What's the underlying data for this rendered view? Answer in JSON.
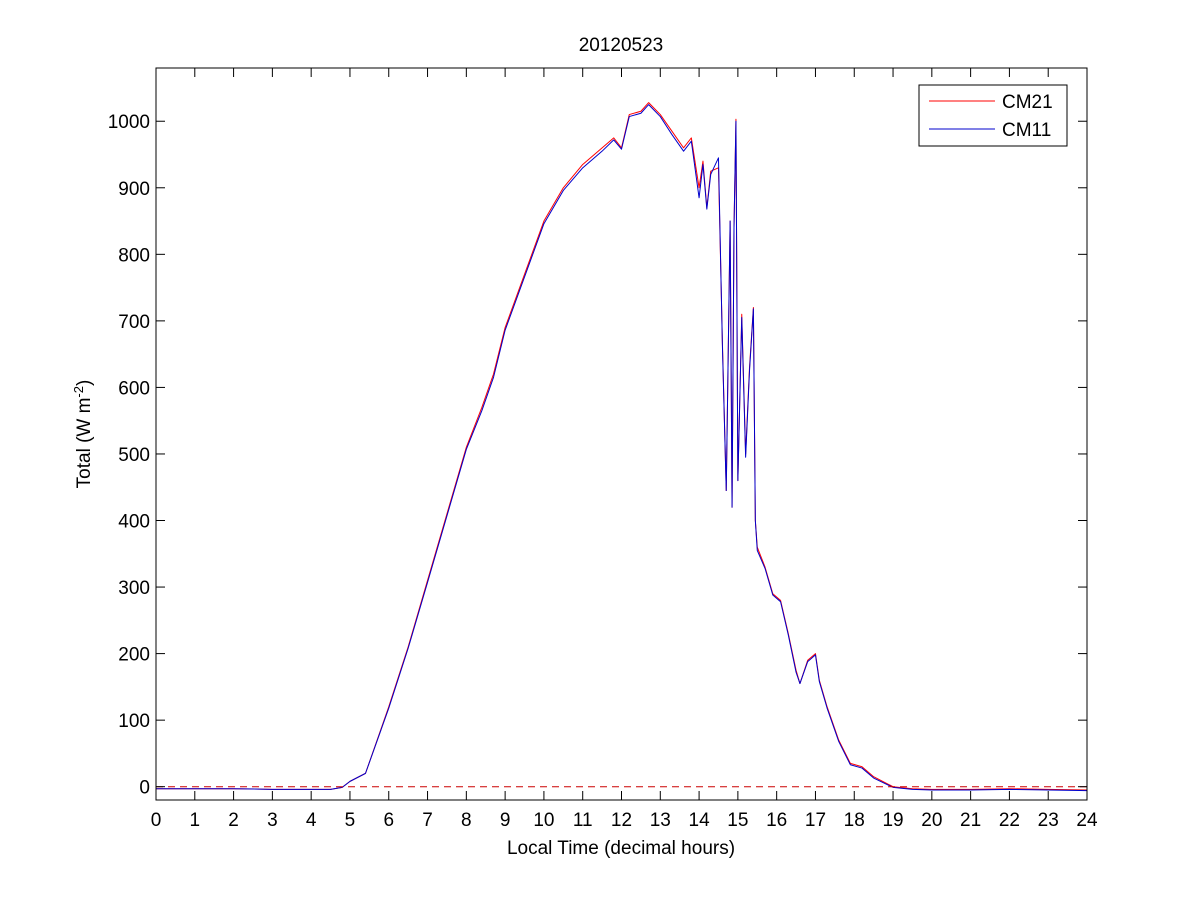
{
  "chart_data": {
    "type": "line",
    "title": "20120523",
    "xlabel": "Local Time (decimal hours)",
    "ylabel": {
      "base": "Total (W m",
      "exponent": "-2",
      "suffix": ")"
    },
    "xlim": [
      0,
      24
    ],
    "ylim": [
      -20,
      1080
    ],
    "xticks": [
      "0",
      "1",
      "2",
      "3",
      "4",
      "5",
      "6",
      "7",
      "8",
      "9",
      "10",
      "11",
      "12",
      "13",
      "14",
      "15",
      "16",
      "17",
      "18",
      "19",
      "20",
      "21",
      "22",
      "23",
      "24"
    ],
    "yticks": [
      "0",
      "100",
      "200",
      "300",
      "400",
      "500",
      "600",
      "700",
      "800",
      "900",
      "1000"
    ],
    "grid": false,
    "legend_position": "top-right",
    "zero_reference_line": {
      "value": 0,
      "style": "dashed",
      "color": "#cc0000"
    },
    "series": [
      {
        "name": "CM21",
        "color": "#ff0000",
        "points": [
          [
            0,
            -3
          ],
          [
            2,
            -3
          ],
          [
            3,
            -4
          ],
          [
            4.5,
            -4
          ],
          [
            4.8,
            -1
          ],
          [
            5,
            8
          ],
          [
            5.4,
            20
          ],
          [
            6,
            120
          ],
          [
            6.5,
            210
          ],
          [
            7,
            310
          ],
          [
            7.5,
            410
          ],
          [
            8,
            510
          ],
          [
            8.4,
            570
          ],
          [
            8.7,
            620
          ],
          [
            9,
            690
          ],
          [
            9.5,
            770
          ],
          [
            10,
            850
          ],
          [
            10.5,
            900
          ],
          [
            11,
            935
          ],
          [
            11.5,
            960
          ],
          [
            11.8,
            975
          ],
          [
            12,
            960
          ],
          [
            12.2,
            1010
          ],
          [
            12.5,
            1015
          ],
          [
            12.7,
            1028
          ],
          [
            13,
            1010
          ],
          [
            13.3,
            985
          ],
          [
            13.6,
            960
          ],
          [
            13.8,
            975
          ],
          [
            14,
            900
          ],
          [
            14.1,
            940
          ],
          [
            14.2,
            870
          ],
          [
            14.3,
            925
          ],
          [
            14.5,
            930
          ],
          [
            14.6,
            670
          ],
          [
            14.7,
            445
          ],
          [
            14.8,
            850
          ],
          [
            14.85,
            420
          ],
          [
            14.9,
            840
          ],
          [
            14.95,
            1003
          ],
          [
            15,
            460
          ],
          [
            15.1,
            710
          ],
          [
            15.2,
            500
          ],
          [
            15.3,
            630
          ],
          [
            15.4,
            720
          ],
          [
            15.45,
            400
          ],
          [
            15.5,
            360
          ],
          [
            15.7,
            330
          ],
          [
            15.9,
            290
          ],
          [
            16.1,
            280
          ],
          [
            16.3,
            230
          ],
          [
            16.5,
            175
          ],
          [
            16.6,
            155
          ],
          [
            16.8,
            190
          ],
          [
            17,
            200
          ],
          [
            17.1,
            160
          ],
          [
            17.3,
            120
          ],
          [
            17.6,
            70
          ],
          [
            17.9,
            35
          ],
          [
            18.2,
            30
          ],
          [
            18.5,
            15
          ],
          [
            19,
            0
          ],
          [
            19.5,
            -3
          ],
          [
            20,
            -4
          ],
          [
            21,
            -4
          ],
          [
            22,
            -3
          ],
          [
            23,
            -4
          ],
          [
            24,
            -5
          ]
        ]
      },
      {
        "name": "CM11",
        "color": "#0000cc",
        "points": [
          [
            0,
            -3
          ],
          [
            2,
            -3
          ],
          [
            3,
            -4
          ],
          [
            4.5,
            -4
          ],
          [
            4.8,
            -1
          ],
          [
            5,
            8
          ],
          [
            5.4,
            20
          ],
          [
            6,
            118
          ],
          [
            6.5,
            208
          ],
          [
            7,
            307
          ],
          [
            7.5,
            407
          ],
          [
            8,
            507
          ],
          [
            8.4,
            565
          ],
          [
            8.7,
            615
          ],
          [
            9,
            686
          ],
          [
            9.5,
            766
          ],
          [
            10,
            846
          ],
          [
            10.5,
            896
          ],
          [
            11,
            930
          ],
          [
            11.5,
            955
          ],
          [
            11.8,
            972
          ],
          [
            12,
            958
          ],
          [
            12.2,
            1007
          ],
          [
            12.5,
            1012
          ],
          [
            12.7,
            1025
          ],
          [
            13,
            1007
          ],
          [
            13.3,
            980
          ],
          [
            13.6,
            955
          ],
          [
            13.8,
            970
          ],
          [
            14,
            885
          ],
          [
            14.1,
            935
          ],
          [
            14.2,
            868
          ],
          [
            14.3,
            920
          ],
          [
            14.5,
            945
          ],
          [
            14.6,
            665
          ],
          [
            14.7,
            445
          ],
          [
            14.8,
            850
          ],
          [
            14.85,
            420
          ],
          [
            14.9,
            840
          ],
          [
            14.95,
            1000
          ],
          [
            15,
            460
          ],
          [
            15.1,
            705
          ],
          [
            15.2,
            495
          ],
          [
            15.3,
            625
          ],
          [
            15.4,
            718
          ],
          [
            15.45,
            400
          ],
          [
            15.5,
            355
          ],
          [
            15.7,
            328
          ],
          [
            15.9,
            288
          ],
          [
            16.1,
            278
          ],
          [
            16.3,
            228
          ],
          [
            16.5,
            172
          ],
          [
            16.6,
            155
          ],
          [
            16.8,
            188
          ],
          [
            17,
            198
          ],
          [
            17.1,
            158
          ],
          [
            17.3,
            118
          ],
          [
            17.6,
            68
          ],
          [
            17.9,
            33
          ],
          [
            18.2,
            28
          ],
          [
            18.5,
            13
          ],
          [
            19,
            -1
          ],
          [
            19.5,
            -4
          ],
          [
            20,
            -5
          ],
          [
            21,
            -5
          ],
          [
            22,
            -4
          ],
          [
            23,
            -5
          ],
          [
            24,
            -6
          ]
        ]
      }
    ]
  }
}
